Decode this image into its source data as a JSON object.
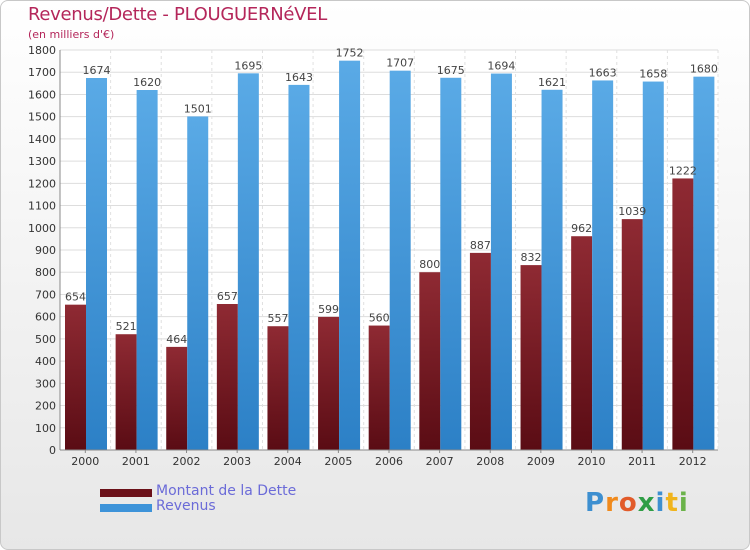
{
  "title": "Revenus/Dette - PLOUGUERNéVEL",
  "subtitle": "(en milliers d'€)",
  "brand": "Proxiti",
  "colors": {
    "dette": "#7a1e28",
    "revenus": "#3d93d9",
    "title": "#b4265a",
    "legend_text": "#6b6bd8"
  },
  "chart_data": {
    "type": "bar",
    "categories": [
      "2000",
      "2001",
      "2002",
      "2003",
      "2004",
      "2005",
      "2006",
      "2007",
      "2008",
      "2009",
      "2010",
      "2011",
      "2012"
    ],
    "series": [
      {
        "name": "Montant de la Dette",
        "values": [
          654,
          521,
          464,
          657,
          557,
          599,
          560,
          800,
          887,
          832,
          962,
          1039,
          1222
        ]
      },
      {
        "name": "Revenus",
        "values": [
          1674,
          1620,
          1501,
          1695,
          1643,
          1752,
          1707,
          1675,
          1694,
          1621,
          1663,
          1658,
          1680
        ]
      }
    ],
    "ylim": [
      0,
      1800
    ],
    "yticks": [
      0,
      100,
      200,
      300,
      400,
      500,
      600,
      700,
      800,
      900,
      1000,
      1100,
      1200,
      1300,
      1400,
      1500,
      1600,
      1700,
      1800
    ],
    "grid": true,
    "legend_position": "bottom-left"
  }
}
